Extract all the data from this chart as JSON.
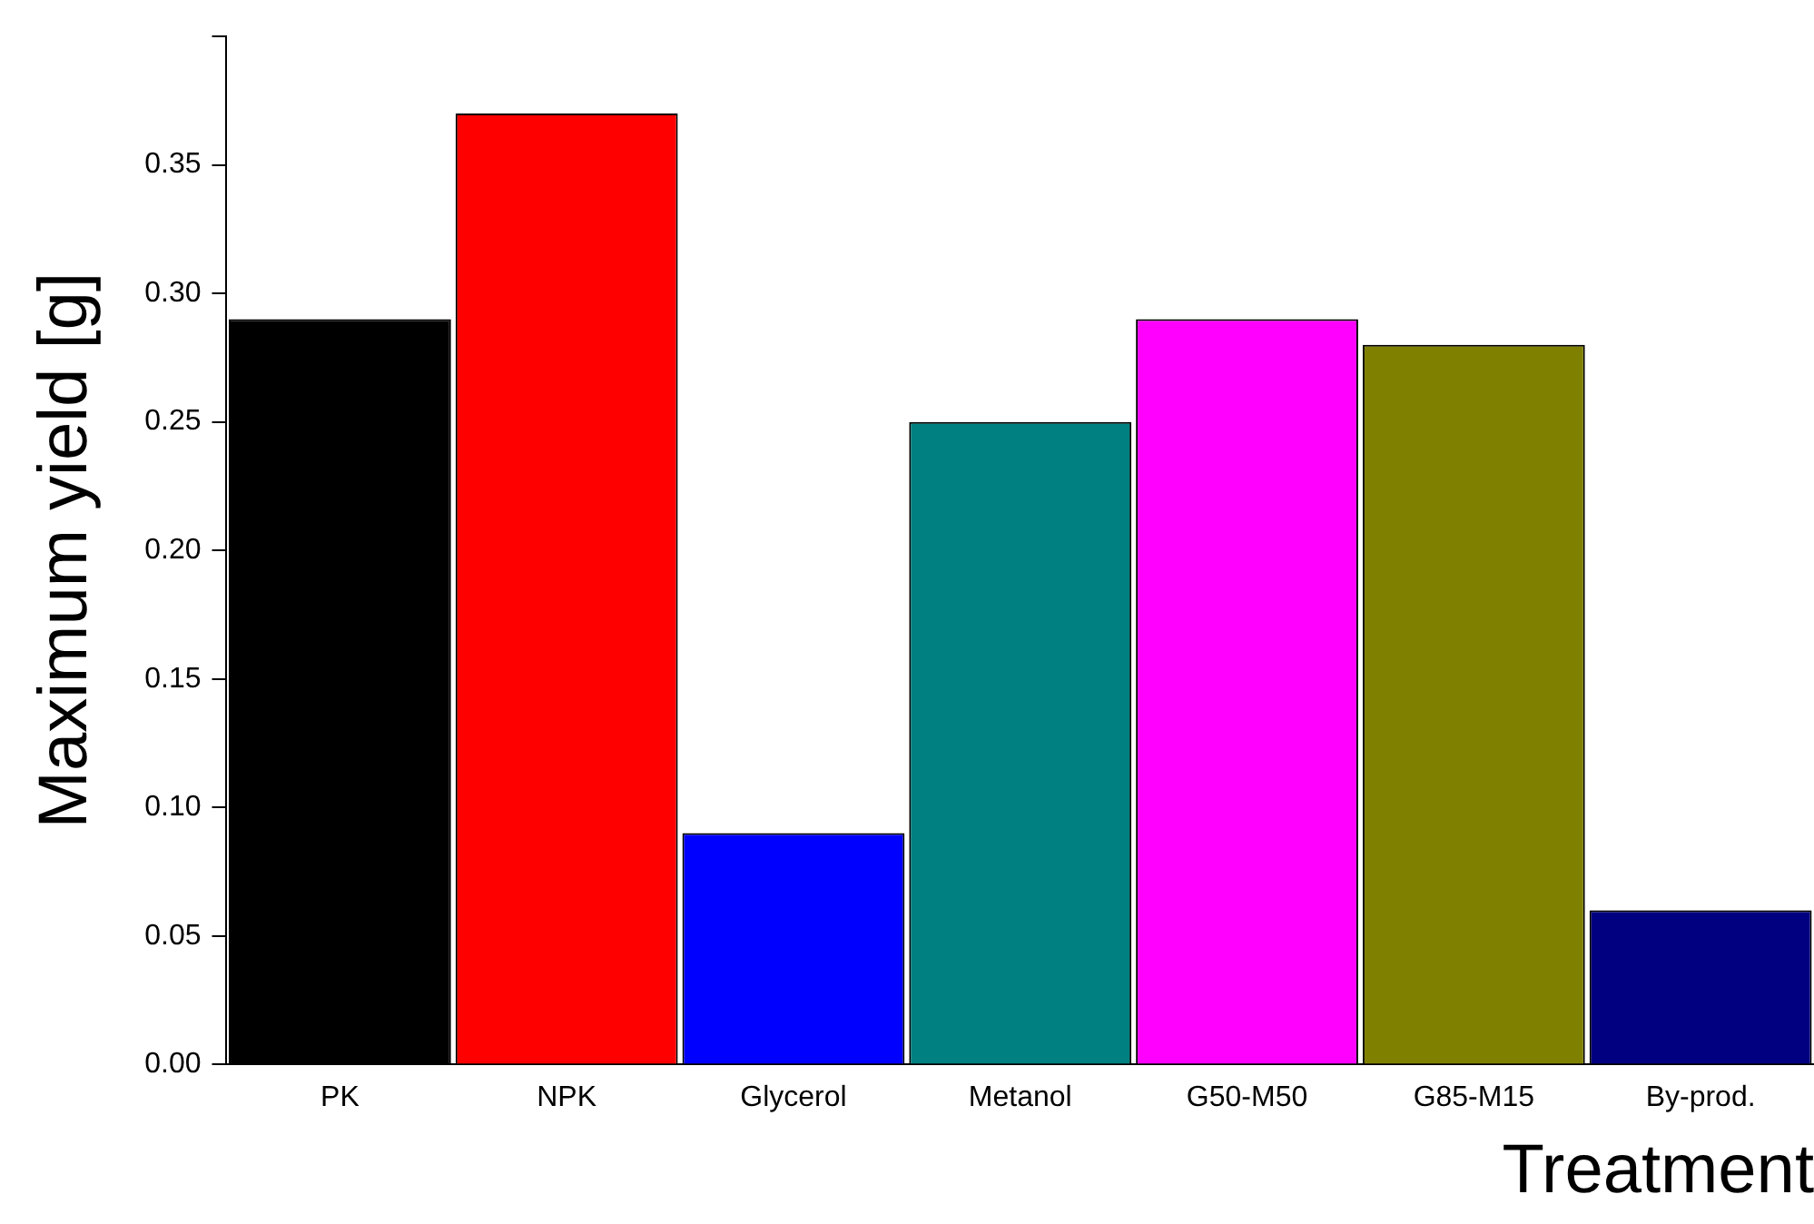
{
  "chart_data": {
    "type": "bar",
    "xlabel": "Treatment",
    "ylabel": "Maximum yield [g]",
    "categories": [
      "PK",
      "NPK",
      "Glycerol",
      "Metanol",
      "G50-M50",
      "G85-M15",
      "By-prod."
    ],
    "values": [
      0.29,
      0.37,
      0.09,
      0.25,
      0.29,
      0.28,
      0.06
    ],
    "colors": [
      "#000000",
      "#ff0000",
      "#0000ff",
      "#008080",
      "#ff00ff",
      "#808000",
      "#000080"
    ],
    "ylim": [
      0,
      0.4
    ],
    "yticks": [
      {
        "value": 0,
        "label": "0.00"
      },
      {
        "value": 0.05,
        "label": "0.05"
      },
      {
        "value": 0.1,
        "label": "0.10"
      },
      {
        "value": 0.15,
        "label": "0.15"
      },
      {
        "value": 0.2,
        "label": "0.20"
      },
      {
        "value": 0.25,
        "label": "0.25"
      },
      {
        "value": 0.3,
        "label": "0.30"
      },
      {
        "value": 0.35,
        "label": "0.35"
      },
      {
        "value": 0.4,
        "label": null
      }
    ],
    "grid": false,
    "legend": false
  }
}
